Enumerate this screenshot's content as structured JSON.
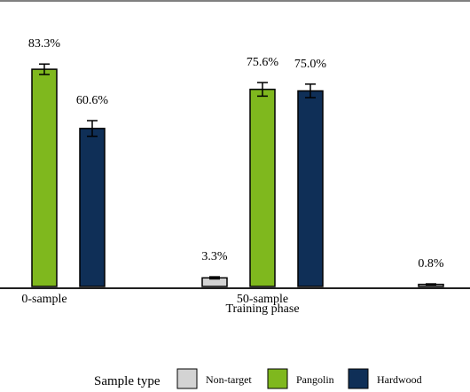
{
  "chart_data": {
    "type": "bar",
    "xlabel": "Training phase",
    "categories": [
      "0-sample",
      "50-sample",
      ""
    ],
    "ylim": [
      0,
      100
    ],
    "grid": false,
    "legend_position": "bottom",
    "legend_title": "Sample type",
    "colors": {
      "Non-target": "#d3d3d3",
      "Pangolin": "#7fb81e",
      "Hardwood": "#0f2f57"
    },
    "series": [
      {
        "name": "Non-target",
        "values": [
          null,
          3.3,
          0.8
        ],
        "labels": [
          "",
          "3.3%",
          "0.8%"
        ],
        "err": [
          null,
          0.4,
          0.2
        ]
      },
      {
        "name": "Pangolin",
        "values": [
          83.3,
          75.6,
          null
        ],
        "labels": [
          "83.3%",
          "75.6%",
          ""
        ],
        "err": [
          2.0,
          2.6,
          null
        ]
      },
      {
        "name": "Hardwood",
        "values": [
          60.6,
          75.0,
          null
        ],
        "labels": [
          "60.6%",
          "75.0%",
          ""
        ],
        "err": [
          3.0,
          2.6,
          null
        ]
      }
    ]
  }
}
